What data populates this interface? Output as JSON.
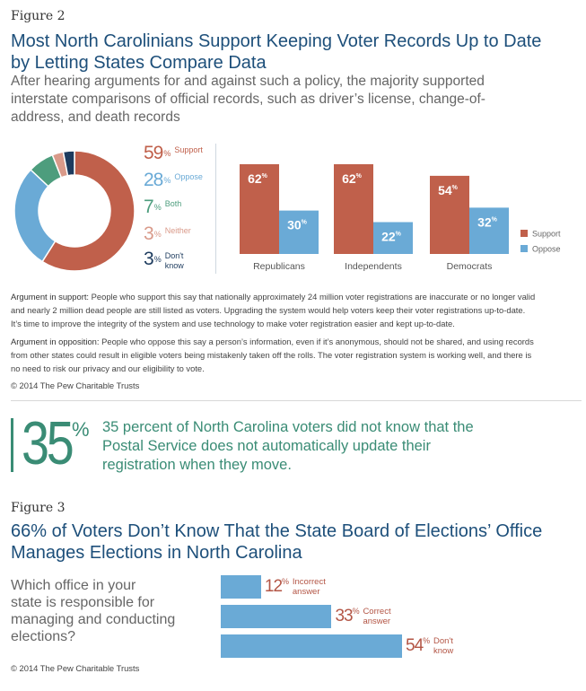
{
  "figure2": {
    "label": "Figure 2",
    "title_line1": "Most North Carolinians Support Keeping Voter Records Up to Date",
    "title_line2": "by Letting States Compare Data",
    "subtitle_line1": "After hearing arguments for and against such a policy, the majority supported",
    "subtitle_line2": "interstate comparisons of official records, such as driver’s license, change-of-",
    "subtitle_line3": "address, and death records"
  },
  "chart_data": [
    {
      "type": "pie",
      "categories": [
        "Support",
        "Oppose",
        "Both",
        "Neither",
        "Don't know"
      ],
      "values": [
        59,
        28,
        7,
        3,
        3
      ],
      "legend": [
        {
          "pct": "59",
          "label": "Support",
          "color": "#c0604b"
        },
        {
          "pct": "28",
          "label": "Oppose",
          "color": "#6aaad6"
        },
        {
          "pct": "7",
          "label": "Both",
          "color": "#4d9d7d"
        },
        {
          "pct": "3",
          "label": "Neither",
          "color": "#d99a8a"
        },
        {
          "pct": "3",
          "label_line1": "Don't",
          "label_line2": "know",
          "color": "#1d3b5e"
        }
      ],
      "donut": true
    },
    {
      "type": "bar",
      "categories": [
        "Republicans",
        "Independents",
        "Democrats"
      ],
      "series": [
        {
          "name": "Support",
          "values": [
            62,
            62,
            54
          ],
          "color": "#c0604b"
        },
        {
          "name": "Oppose",
          "values": [
            30,
            22,
            32
          ],
          "color": "#6aaad6"
        }
      ],
      "ylim": [
        0,
        62
      ],
      "legend_position": "right"
    },
    {
      "type": "bar",
      "orientation": "horizontal",
      "categories": [
        "Incorrect answer",
        "Correct answer",
        "Don't know"
      ],
      "values": [
        12,
        33,
        54
      ],
      "labels": [
        {
          "pct": "12",
          "line1": "Incorrect",
          "line2": "answer"
        },
        {
          "pct": "33",
          "line1": "Correct",
          "line2": "answer"
        },
        {
          "pct": "54",
          "line1": "Don't",
          "line2": "know"
        }
      ],
      "color": "#6aaad6"
    }
  ],
  "arguments": {
    "support_head": "Argument in support:",
    "support_line1": " People who support this say that nationally approximately 24 million voter registrations are inaccurate or no longer valid",
    "support_line2": "and nearly 2 million dead people are still listed as voters. Upgrading the system would help voters keep their voter registrations up-to-date.",
    "support_line3": "It’s time to improve the integrity of the system and use technology to make voter registration easier and kept up-to-date.",
    "oppose_head": "Argument in opposition:",
    "oppose_line1": " People who oppose this say a person’s information, even if it’s anonymous, should not be shared, and using records",
    "oppose_line2": "from other states could result in eligible voters being mistakenly taken off the rolls. The voter registration system is working well, and there is",
    "oppose_line3": "no need to risk our privacy and our eligibility to vote.",
    "copyright": "© 2014 The Pew Charitable Trusts"
  },
  "callout": {
    "number": "35",
    "unit": "%",
    "line1": "35 percent of North Carolina voters did not know that the",
    "line2": "Postal Service does not automatically update their",
    "line3": "registration when they move."
  },
  "figure3": {
    "label": "Figure 3",
    "title_line1": "66% of Voters Don’t Know That the State Board of Elections’ Office",
    "title_line2": "Manages Elections in North Carolina",
    "question_line1": "Which office in your",
    "question_line2": "state is responsible for",
    "question_line3": "managing and conducting",
    "question_line4": "elections?",
    "copyright": "© 2014 The Pew Charitable Trusts"
  },
  "colors": {
    "title_blue": "#1d4f7a",
    "support": "#c0604b",
    "oppose": "#6aaad6",
    "callout_green": "#3a8c75"
  }
}
